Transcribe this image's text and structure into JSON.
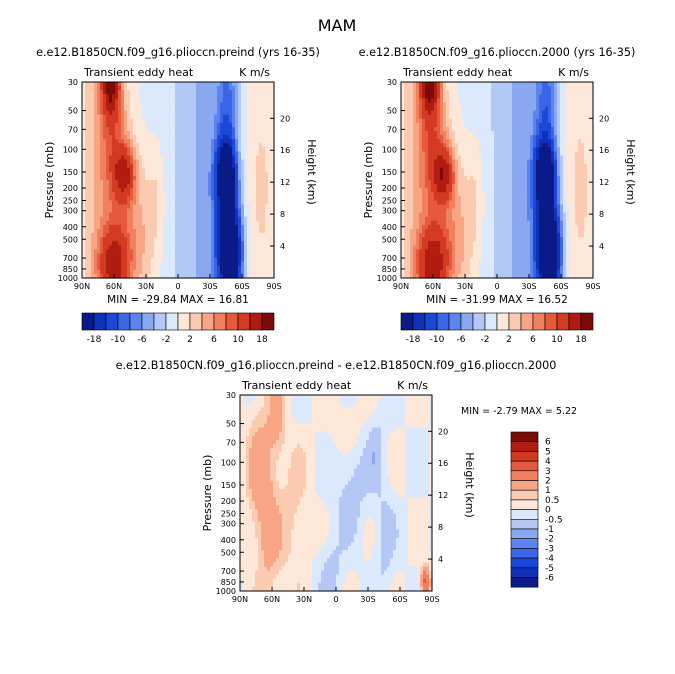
{
  "figure": {
    "title": "MAM"
  },
  "chart_data": [
    {
      "type": "heatmap",
      "panel": "top-left",
      "title": "e.e12.B1850CN.f09_g16.plioccn.preind (yrs 16-35)",
      "left_label": "Transient eddy heat",
      "units": "K m/s",
      "ylabel": "Pressure (mb)",
      "right_label": "Height (km)",
      "pressure_ticks": [
        "30",
        "50",
        "70",
        "100",
        "150",
        "200",
        "250",
        "300",
        "400",
        "500",
        "700",
        "850",
        "1000"
      ],
      "height_ticks": [
        "20",
        "16",
        "12",
        "8",
        "4"
      ],
      "lat_ticks": [
        "90N",
        "60N",
        "30N",
        "0",
        "30S",
        "60S",
        "90S"
      ],
      "stats": "MIN = -29.84   MAX = 16.81",
      "colorbar_labels": [
        "-18",
        "-10",
        "-6",
        "-2",
        "2",
        "6",
        "10",
        "18"
      ],
      "colorbar_levels": [
        -18,
        -14,
        -10,
        -8,
        -6,
        -4,
        -2,
        0,
        2,
        4,
        6,
        8,
        10,
        14,
        18
      ],
      "features": [
        {
          "lat": 60,
          "p": 30,
          "value": 16
        },
        {
          "lat": 65,
          "p": 700,
          "value": 14
        },
        {
          "lat": 50,
          "p": 150,
          "value": 12
        },
        {
          "lat": -45,
          "p": 150,
          "value": -22
        },
        {
          "lat": -50,
          "p": 800,
          "value": -28
        }
      ]
    },
    {
      "type": "heatmap",
      "panel": "top-right",
      "title": "e.e12.B1850CN.f09_g16.plioccn.2000 (yrs 16-35)",
      "left_label": "Transient eddy heat",
      "units": "K m/s",
      "ylabel": "Pressure (mb)",
      "right_label": "Height (km)",
      "pressure_ticks": [
        "30",
        "50",
        "70",
        "100",
        "150",
        "200",
        "250",
        "300",
        "400",
        "500",
        "700",
        "850",
        "1000"
      ],
      "height_ticks": [
        "20",
        "16",
        "12",
        "8",
        "4"
      ],
      "lat_ticks": [
        "90N",
        "60N",
        "30N",
        "0",
        "30S",
        "60S",
        "90S"
      ],
      "stats": "MIN = -31.99   MAX = 16.52",
      "colorbar_labels": [
        "-18",
        "-10",
        "-6",
        "-2",
        "2",
        "6",
        "10",
        "18"
      ],
      "colorbar_levels": [
        -18,
        -14,
        -10,
        -8,
        -6,
        -4,
        -2,
        0,
        2,
        4,
        6,
        8,
        10,
        14,
        18
      ]
    },
    {
      "type": "heatmap",
      "panel": "bottom",
      "title": "e.e12.B1850CN.f09_g16.plioccn.preind - e.e12.B1850CN.f09_g16.plioccn.2000",
      "left_label": "Transient eddy heat",
      "units": "K m/s",
      "ylabel": "Pressure (mb)",
      "right_label": "Height (km)",
      "pressure_ticks": [
        "30",
        "50",
        "70",
        "100",
        "150",
        "200",
        "250",
        "300",
        "400",
        "500",
        "700",
        "850",
        "1000"
      ],
      "height_ticks": [
        "20",
        "16",
        "12",
        "8",
        "4"
      ],
      "lat_ticks": [
        "90N",
        "60N",
        "30N",
        "0",
        "30S",
        "60S",
        "90S"
      ],
      "stats": "MIN =   -2.79   MAX =    5.22",
      "colorbar_labels": [
        "6",
        "5",
        "4",
        "3",
        "2",
        "1",
        "0.5",
        "0",
        "-0.5",
        "-1",
        "-2",
        "-3",
        "-4",
        "-5",
        "-6"
      ]
    }
  ],
  "colors": {
    "panel_palette": [
      "#0a1a86",
      "#1030b8",
      "#1a48d8",
      "#3a66e6",
      "#5d84ee",
      "#8aa8f2",
      "#b4c8f6",
      "#dce8fb",
      "#fde7d9",
      "#fbcbb1",
      "#f7a584",
      "#f0805e",
      "#e5593c",
      "#d23a22",
      "#b01b12",
      "#7e0a08"
    ],
    "diff_palette": [
      "#7e0a08",
      "#b01b12",
      "#d23a22",
      "#e5593c",
      "#f0805e",
      "#f7a584",
      "#fbcbb1",
      "#fde7d9",
      "#dce8fb",
      "#b4c8f6",
      "#8aa8f2",
      "#5d84ee",
      "#3a66e6",
      "#1a48d8",
      "#1030b8",
      "#0a1a86"
    ]
  }
}
